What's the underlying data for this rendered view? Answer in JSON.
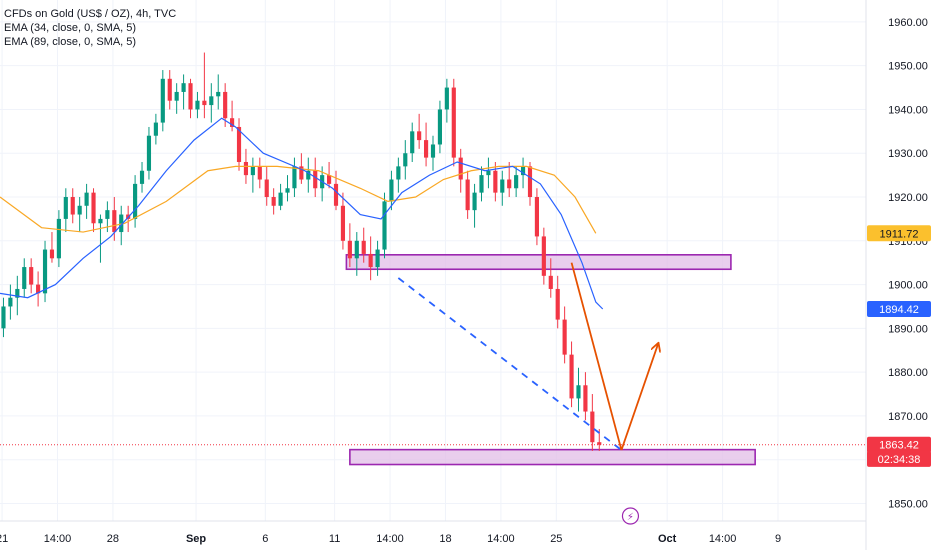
{
  "legend": {
    "title": "CFDs on Gold (US$ / OZ), 4h, TVC",
    "ema1": "EMA (34, close, 0, SMA, 5)",
    "ema2": "EMA (89, close, 0, SMA, 5)"
  },
  "price_tags": [
    {
      "value": "1911.72",
      "bg": "#fbc02d",
      "fg": "#131722",
      "y": 1911.72
    },
    {
      "value": "1894.42",
      "bg": "#2962ff",
      "fg": "#ffffff",
      "y": 1894.42
    },
    {
      "value": "1863.42",
      "bg": "#f23645",
      "fg": "#ffffff",
      "y": 1863.42
    },
    {
      "value": "02:34:38",
      "bg": "#f23645",
      "fg": "#ffffff",
      "y": 1860.2
    }
  ],
  "chart_data": {
    "type": "candlestick",
    "y_ticks": [
      1850,
      1860,
      1870,
      1880,
      1890,
      1900,
      1910,
      1920,
      1930,
      1940,
      1950,
      1960
    ],
    "y_tick_labels": [
      "1850.00",
      "1860.00",
      "1870.00",
      "1880.00",
      "1890.00",
      "1900.00",
      "1910.00",
      "1920.00",
      "1930.00",
      "1940.00",
      "1950.00",
      "1960.00"
    ],
    "ylim": [
      1846,
      1965
    ],
    "x_ticks": [
      {
        "label": "21",
        "pos": 0.3,
        "bold": false
      },
      {
        "label": "14:00",
        "pos": 8.3,
        "bold": false
      },
      {
        "label": "28",
        "pos": 16.3,
        "bold": false
      },
      {
        "label": "Sep",
        "pos": 28.3,
        "bold": true
      },
      {
        "label": "6",
        "pos": 38.3,
        "bold": false
      },
      {
        "label": "11",
        "pos": 48.3,
        "bold": false
      },
      {
        "label": "14:00",
        "pos": 56.3,
        "bold": false
      },
      {
        "label": "18",
        "pos": 64.3,
        "bold": false
      },
      {
        "label": "14:00",
        "pos": 72.3,
        "bold": false
      },
      {
        "label": "25",
        "pos": 80.3,
        "bold": false
      },
      {
        "label": "Oct",
        "pos": 96.3,
        "bold": true
      },
      {
        "label": "14:00",
        "pos": 104.3,
        "bold": false
      },
      {
        "label": "9",
        "pos": 112.3,
        "bold": false
      }
    ],
    "xlim": [
      0,
      125
    ],
    "candles": [
      [
        1890,
        1897,
        1888,
        1895
      ],
      [
        1895,
        1900,
        1892,
        1897
      ],
      [
        1897,
        1902,
        1893,
        1899
      ],
      [
        1899,
        1906,
        1897,
        1904
      ],
      [
        1904,
        1906,
        1898,
        1900
      ],
      [
        1900,
        1903,
        1895,
        1898
      ],
      [
        1898,
        1910,
        1896,
        1908
      ],
      [
        1908,
        1912,
        1905,
        1906
      ],
      [
        1906,
        1917,
        1904,
        1915
      ],
      [
        1915,
        1922,
        1912,
        1920
      ],
      [
        1920,
        1922,
        1914,
        1916
      ],
      [
        1916,
        1920,
        1912,
        1918
      ],
      [
        1918,
        1923,
        1915,
        1921
      ],
      [
        1921,
        1922,
        1912,
        1914
      ],
      [
        1914,
        1916,
        1905,
        1915
      ],
      [
        1915,
        1919,
        1912,
        1917
      ],
      [
        1917,
        1920,
        1910,
        1912
      ],
      [
        1912,
        1918,
        1909,
        1916
      ],
      [
        1916,
        1918,
        1912,
        1915
      ],
      [
        1915,
        1925,
        1913,
        1923
      ],
      [
        1923,
        1928,
        1921,
        1926
      ],
      [
        1926,
        1936,
        1924,
        1934
      ],
      [
        1934,
        1939,
        1932,
        1937
      ],
      [
        1937,
        1949,
        1935,
        1947
      ],
      [
        1947,
        1949,
        1940,
        1942
      ],
      [
        1942,
        1946,
        1939,
        1944
      ],
      [
        1944,
        1948,
        1940,
        1946
      ],
      [
        1946,
        1947,
        1938,
        1940
      ],
      [
        1940,
        1944,
        1938,
        1942
      ],
      [
        1942,
        1953,
        1938,
        1941
      ],
      [
        1941,
        1946,
        1937,
        1943
      ],
      [
        1943,
        1948,
        1940,
        1944
      ],
      [
        1944,
        1946,
        1936,
        1938
      ],
      [
        1938,
        1942,
        1935,
        1936
      ],
      [
        1936,
        1938,
        1926,
        1928
      ],
      [
        1928,
        1931,
        1923,
        1925
      ],
      [
        1925,
        1929,
        1921,
        1927
      ],
      [
        1927,
        1929,
        1922,
        1924
      ],
      [
        1924,
        1927,
        1918,
        1920
      ],
      [
        1920,
        1922,
        1916,
        1918
      ],
      [
        1918,
        1923,
        1917,
        1921
      ],
      [
        1921,
        1925,
        1919,
        1922
      ],
      [
        1922,
        1929,
        1920,
        1927
      ],
      [
        1927,
        1930,
        1923,
        1924
      ],
      [
        1924,
        1929,
        1921,
        1926
      ],
      [
        1926,
        1929,
        1920,
        1922
      ],
      [
        1922,
        1927,
        1919,
        1925
      ],
      [
        1925,
        1928,
        1922,
        1923
      ],
      [
        1923,
        1926,
        1917,
        1918
      ],
      [
        1918,
        1921,
        1908,
        1910
      ],
      [
        1910,
        1914,
        1904,
        1906
      ],
      [
        1906,
        1912,
        1902,
        1910
      ],
      [
        1910,
        1913,
        1905,
        1907
      ],
      [
        1907,
        1911,
        1901,
        1904
      ],
      [
        1904,
        1910,
        1902,
        1908
      ],
      [
        1908,
        1921,
        1906,
        1919
      ],
      [
        1919,
        1926,
        1917,
        1924
      ],
      [
        1924,
        1929,
        1921,
        1927
      ],
      [
        1927,
        1933,
        1924,
        1930
      ],
      [
        1930,
        1937,
        1928,
        1935
      ],
      [
        1935,
        1939,
        1931,
        1933
      ],
      [
        1933,
        1937,
        1927,
        1929
      ],
      [
        1929,
        1934,
        1926,
        1932
      ],
      [
        1932,
        1942,
        1930,
        1940
      ],
      [
        1940,
        1947,
        1937,
        1945
      ],
      [
        1945,
        1947,
        1927,
        1929
      ],
      [
        1929,
        1931,
        1921,
        1924
      ],
      [
        1924,
        1926,
        1915,
        1917
      ],
      [
        1917,
        1923,
        1913,
        1921
      ],
      [
        1921,
        1927,
        1919,
        1925
      ],
      [
        1925,
        1929,
        1922,
        1926
      ],
      [
        1926,
        1928,
        1919,
        1921
      ],
      [
        1921,
        1926,
        1918,
        1924
      ],
      [
        1924,
        1928,
        1920,
        1922
      ],
      [
        1922,
        1927,
        1920,
        1925
      ],
      [
        1925,
        1929,
        1922,
        1927
      ],
      [
        1927,
        1928,
        1918,
        1920
      ],
      [
        1920,
        1922,
        1909,
        1911
      ],
      [
        1911,
        1913,
        1900,
        1902
      ],
      [
        1902,
        1906,
        1897,
        1899
      ],
      [
        1899,
        1902,
        1890,
        1892
      ],
      [
        1892,
        1895,
        1882,
        1884
      ],
      [
        1884,
        1887,
        1872,
        1874
      ],
      [
        1874,
        1881,
        1871,
        1877
      ],
      [
        1877,
        1880,
        1869,
        1871
      ],
      [
        1871,
        1875,
        1862,
        1864
      ],
      [
        1864,
        1867,
        1862,
        1863.42
      ]
    ],
    "ema34": [
      [
        0,
        1898
      ],
      [
        4,
        1897
      ],
      [
        8,
        1900
      ],
      [
        12,
        1906
      ],
      [
        16,
        1911
      ],
      [
        20,
        1918
      ],
      [
        24,
        1926
      ],
      [
        28,
        1933
      ],
      [
        32,
        1938
      ],
      [
        34,
        1936
      ],
      [
        38,
        1930
      ],
      [
        44,
        1926
      ],
      [
        48,
        1922
      ],
      [
        52,
        1916
      ],
      [
        55,
        1915
      ],
      [
        58,
        1921
      ],
      [
        62,
        1925
      ],
      [
        66,
        1928
      ],
      [
        70,
        1926
      ],
      [
        74,
        1927
      ],
      [
        78,
        1923
      ],
      [
        81,
        1916
      ],
      [
        84,
        1905
      ],
      [
        86,
        1896
      ],
      [
        87,
        1894.42
      ]
    ],
    "ema89": [
      [
        0,
        1920
      ],
      [
        6,
        1913
      ],
      [
        12,
        1912
      ],
      [
        18,
        1914
      ],
      [
        24,
        1919
      ],
      [
        30,
        1926
      ],
      [
        34,
        1927
      ],
      [
        40,
        1927
      ],
      [
        46,
        1926
      ],
      [
        52,
        1922
      ],
      [
        56,
        1919
      ],
      [
        60,
        1920
      ],
      [
        64,
        1924
      ],
      [
        68,
        1926
      ],
      [
        72,
        1927
      ],
      [
        76,
        1927
      ],
      [
        80,
        1925
      ],
      [
        83,
        1920
      ],
      [
        86,
        1911.72
      ]
    ],
    "zones": [
      {
        "x1": 50,
        "x2": 105.5,
        "y1": 1903.5,
        "y2": 1906.8,
        "fill": "#e1bee7",
        "stroke": "#9c27b0"
      },
      {
        "x1": 50.5,
        "x2": 109,
        "y1": 1858.9,
        "y2": 1862.3,
        "fill": "#e1bee7",
        "stroke": "#9c27b0"
      }
    ],
    "trendline": {
      "from": [
        57.5,
        1901.5
      ],
      "to": [
        89.7,
        1862.2
      ],
      "color": "#2962ff"
    },
    "arrows": [
      {
        "from": [
          82.5,
          1905
        ],
        "to": [
          89.7,
          1862.2
        ],
        "color": "#e65100",
        "head": false
      },
      {
        "from": [
          89.7,
          1862.2
        ],
        "to": [
          95,
          1886.5
        ],
        "color": "#e65100",
        "head": true
      }
    ],
    "last_price_line": 1863.42,
    "flash_marker": {
      "x": 91,
      "symbol": "⚡"
    },
    "colors": {
      "up": "#089981",
      "down": "#f23645",
      "ema34": "#2962ff",
      "ema89": "#f9a825"
    }
  }
}
